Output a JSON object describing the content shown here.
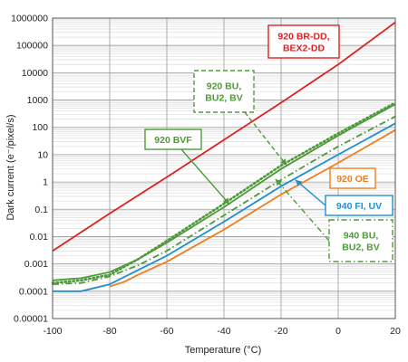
{
  "chart_data": {
    "type": "line",
    "title": "",
    "xlabel": "Temperature (°C)",
    "ylabel": "Dark current (e⁻/pixel/s)",
    "xlim": [
      -100,
      20
    ],
    "ylim": [
      1e-05,
      1000000
    ],
    "y_scale": "log",
    "x_ticks": [
      -100,
      -80,
      -60,
      -40,
      -20,
      0,
      20
    ],
    "x_tick_labels": [
      "-100",
      "-80",
      "-60",
      "-40",
      "-20",
      "0",
      "20"
    ],
    "y_ticks": [
      1e-05,
      0.0001,
      0.001,
      0.01,
      0.1,
      1,
      10,
      100,
      1000,
      10000,
      100000,
      1000000
    ],
    "y_tick_labels": [
      "0.00001",
      "0.0001",
      "0.001",
      "0.01",
      "0.1",
      "1",
      "10",
      "100",
      "1000",
      "10000",
      "100000",
      "1000000"
    ],
    "grid": true,
    "series": [
      {
        "name": "920 BR-DD, BEX2-DD",
        "color": "#e02020",
        "style": "solid",
        "x": [
          -100,
          -80,
          -60,
          -40,
          -20,
          0,
          20
        ],
        "y": [
          0.003,
          0.07,
          1.5,
          35,
          800,
          20000,
          700000
        ]
      },
      {
        "name": "920 BVF",
        "color": "#4e9a3a",
        "style": "solid",
        "x": [
          -100,
          -90,
          -80,
          -70,
          -60,
          -40,
          -20,
          0,
          20
        ],
        "y": [
          0.00025,
          0.0003,
          0.0005,
          0.0015,
          0.006,
          0.12,
          3,
          50,
          700
        ]
      },
      {
        "name": "920 BU, BU2, BV",
        "color": "#4e9a3a",
        "style": "dotted",
        "x": [
          -100,
          -90,
          -80,
          -70,
          -60,
          -40,
          -20,
          0,
          20
        ],
        "y": [
          0.0002,
          0.00025,
          0.0004,
          0.0015,
          0.007,
          0.16,
          4,
          60,
          800
        ]
      },
      {
        "name": "940 BU, BU2, BV",
        "color": "#4e9a3a",
        "style": "dashdot",
        "x": [
          -100,
          -90,
          -80,
          -70,
          -60,
          -40,
          -20,
          0,
          20
        ],
        "y": [
          0.00018,
          0.0002,
          0.00035,
          0.0009,
          0.003,
          0.06,
          1.2,
          20,
          250
        ]
      },
      {
        "name": "940 FI, UV",
        "color": "#1f8fcf",
        "style": "solid",
        "x": [
          -100,
          -90,
          -80,
          -70,
          -60,
          -40,
          -20,
          0,
          20
        ],
        "y": [
          0.0001,
          0.0001,
          0.00018,
          0.0006,
          0.002,
          0.035,
          0.7,
          10,
          140
        ]
      },
      {
        "name": "920 OE",
        "color": "#f07d1a",
        "style": "solid",
        "x": [
          -80,
          -75,
          -70,
          -60,
          -40,
          -20,
          0,
          20
        ],
        "y": [
          0.00015,
          0.00022,
          0.0004,
          0.0012,
          0.018,
          0.35,
          5,
          80
        ]
      }
    ],
    "annotations": [
      {
        "id": "ann-920-br-dd",
        "lines": [
          "920 BR-DD,",
          "BEX2-DD"
        ],
        "color": "#e02020",
        "border": "solid",
        "target": null
      },
      {
        "id": "ann-920-bu",
        "lines": [
          "920 BU,",
          "BU2, BV"
        ],
        "color": "#4e9a3a",
        "border": "dashed",
        "target": [
          -18,
          4
        ]
      },
      {
        "id": "ann-920-bvf",
        "lines": [
          "920 BVF"
        ],
        "color": "#4e9a3a",
        "border": "solid",
        "target": [
          -38,
          0.15
        ]
      },
      {
        "id": "ann-920-oe",
        "lines": [
          "920 OE"
        ],
        "color": "#f07d1a",
        "border": "solid",
        "target": null
      },
      {
        "id": "ann-940-fi",
        "lines": [
          "940 FI, UV"
        ],
        "color": "#1f8fcf",
        "border": "solid",
        "target": [
          -15,
          1.2
        ]
      },
      {
        "id": "ann-940-bu",
        "lines": [
          "940 BU,",
          "BU2, BV"
        ],
        "color": "#4e9a3a",
        "border": "dashdot",
        "target": [
          -22,
          1.3
        ]
      }
    ]
  }
}
